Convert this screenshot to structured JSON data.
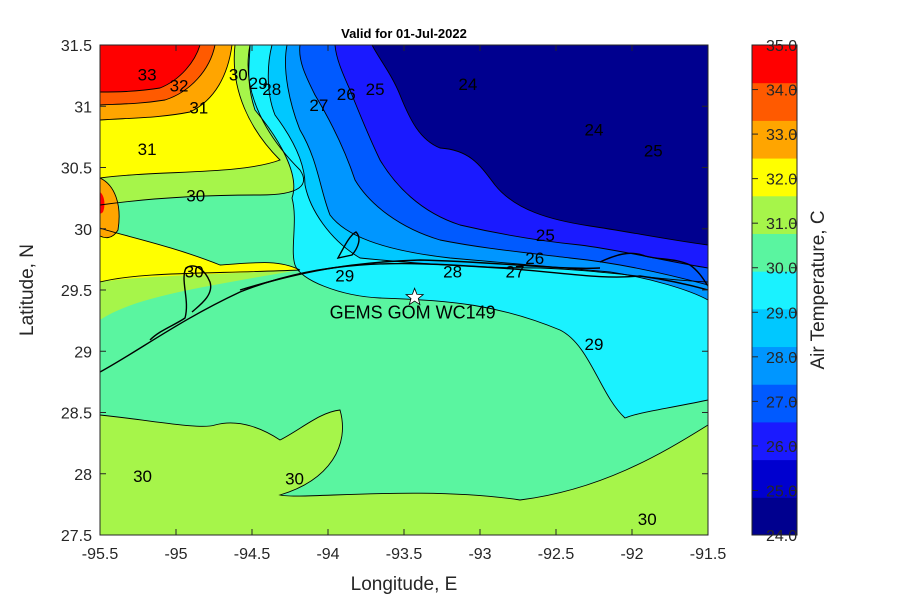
{
  "title": "Valid for 01-Jul-2022",
  "x_axis": {
    "label": "Longitude, E",
    "range": [
      -95.5,
      -91.5
    ],
    "ticks": [
      "-95.5",
      "-95",
      "-94.5",
      "-94",
      "-93.5",
      "-93",
      "-92.5",
      "-92",
      "-91.5"
    ]
  },
  "y_axis": {
    "label": "Latitude, N",
    "range": [
      27.5,
      31.5
    ],
    "ticks": [
      "27.5",
      "28",
      "28.5",
      "29",
      "29.5",
      "30",
      "30.5",
      "31",
      "31.5"
    ]
  },
  "colorbar": {
    "label": "Air Temperature, C",
    "range": [
      24,
      35
    ],
    "ticks": [
      "24.0",
      "25.0",
      "26.0",
      "27.0",
      "28.0",
      "29.0",
      "30.0",
      "31.0",
      "32.0",
      "33.0",
      "34.0",
      "35.0"
    ],
    "colors": [
      "#00008f",
      "#0000cf",
      "#1a1aff",
      "#005aff",
      "#0096ff",
      "#00c8ff",
      "#1af2ff",
      "#5af5a0",
      "#a6f54a",
      "#ffff00",
      "#ffa500",
      "#ff5a00",
      "#ff0000"
    ]
  },
  "station": {
    "label": "GEMS GOM WC149",
    "lon": -93.43,
    "lat": 29.44
  },
  "contour_labels": [
    {
      "text": "33",
      "lon": -95.19,
      "lat": 31.26
    },
    {
      "text": "32",
      "lon": -94.98,
      "lat": 31.17
    },
    {
      "text": "31",
      "lon": -94.85,
      "lat": 30.99
    },
    {
      "text": "30",
      "lon": -94.59,
      "lat": 31.26
    },
    {
      "text": "29",
      "lon": -94.46,
      "lat": 31.19
    },
    {
      "text": "28",
      "lon": -94.37,
      "lat": 31.14
    },
    {
      "text": "27",
      "lon": -94.06,
      "lat": 31.01
    },
    {
      "text": "26",
      "lon": -93.88,
      "lat": 31.1
    },
    {
      "text": "25",
      "lon": -93.69,
      "lat": 31.14
    },
    {
      "text": "24",
      "lon": -93.08,
      "lat": 31.18
    },
    {
      "text": "24",
      "lon": -92.25,
      "lat": 30.81
    },
    {
      "text": "25",
      "lon": -91.86,
      "lat": 30.64
    },
    {
      "text": "31",
      "lon": -95.19,
      "lat": 30.65
    },
    {
      "text": "30",
      "lon": -94.87,
      "lat": 30.27
    },
    {
      "text": "30",
      "lon": -94.88,
      "lat": 29.65
    },
    {
      "text": "29",
      "lon": -93.89,
      "lat": 29.62
    },
    {
      "text": "28",
      "lon": -93.18,
      "lat": 29.65
    },
    {
      "text": "27",
      "lon": -92.77,
      "lat": 29.65
    },
    {
      "text": "26",
      "lon": -92.64,
      "lat": 29.76
    },
    {
      "text": "25",
      "lon": -92.57,
      "lat": 29.95
    },
    {
      "text": "29",
      "lon": -92.25,
      "lat": 29.06
    },
    {
      "text": "30",
      "lon": -95.22,
      "lat": 27.98
    },
    {
      "text": "30",
      "lon": -94.22,
      "lat": 27.96
    },
    {
      "text": "30",
      "lon": -91.9,
      "lat": 27.63
    }
  ]
}
